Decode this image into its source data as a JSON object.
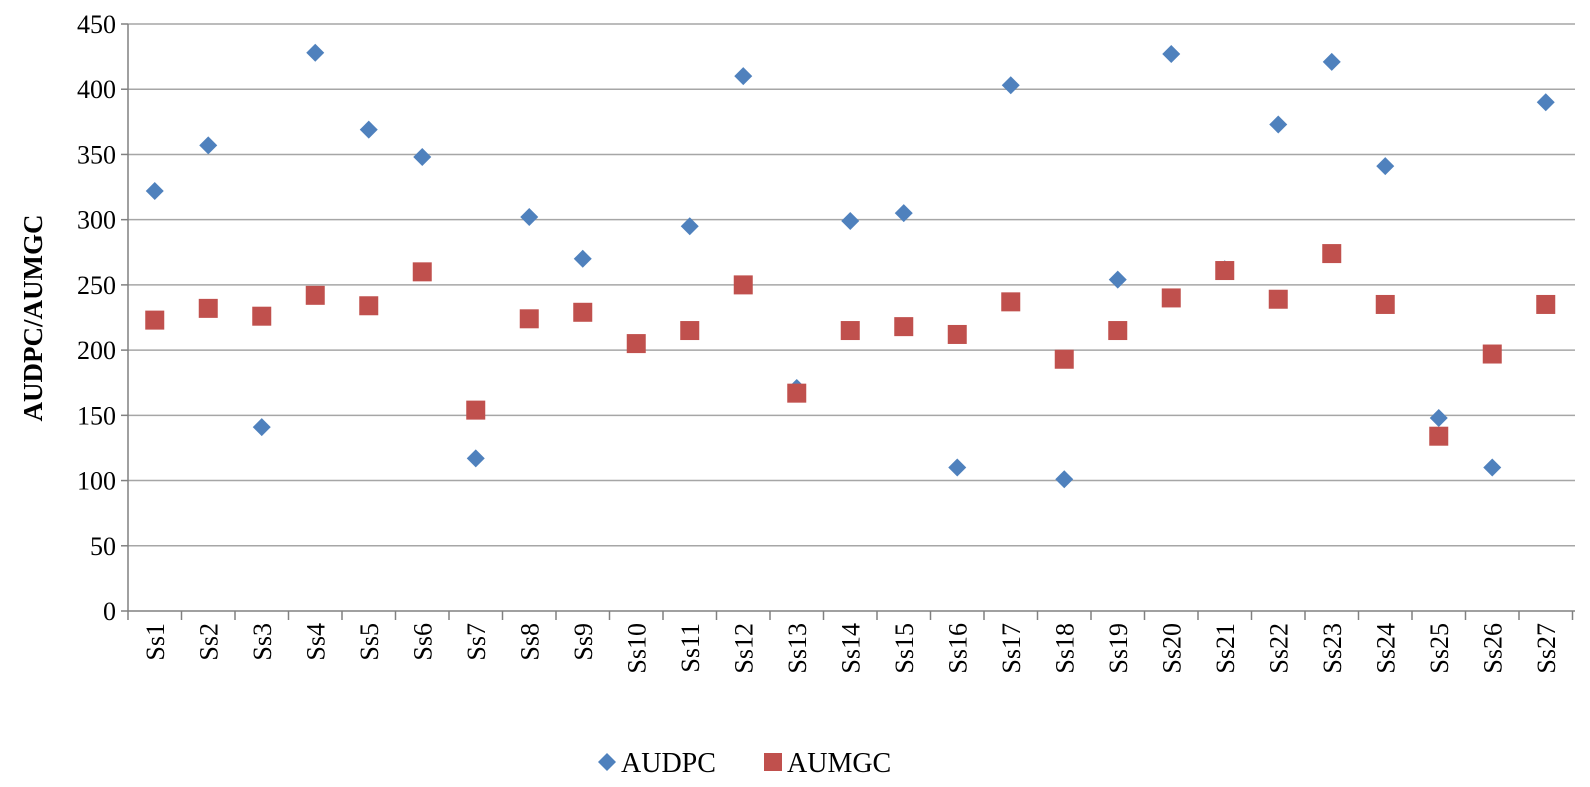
{
  "chart_data": {
    "type": "scatter",
    "categories": [
      "Ss1",
      "Ss2",
      "Ss3",
      "Ss4",
      "Ss5",
      "Ss6",
      "Ss7",
      "Ss8",
      "Ss9",
      "Ss10",
      "Ss11",
      "Ss12",
      "Ss13",
      "Ss14",
      "Ss15",
      "Ss16",
      "Ss17",
      "Ss18",
      "Ss19",
      "Ss20",
      "Ss21",
      "Ss22",
      "Ss23",
      "Ss24",
      "Ss25",
      "Ss26",
      "Ss27"
    ],
    "series": [
      {
        "name": "AUDPC",
        "marker": "diamond",
        "color": "#4F81BD",
        "values": [
          322,
          357,
          141,
          428,
          369,
          348,
          117,
          302,
          270,
          205,
          295,
          410,
          171,
          299,
          305,
          110,
          403,
          101,
          254,
          427,
          262,
          373,
          421,
          341,
          148,
          110,
          390
        ]
      },
      {
        "name": "AUMGC",
        "marker": "square",
        "color": "#C0504D",
        "values": [
          223,
          232,
          226,
          242,
          234,
          260,
          154,
          224,
          229,
          205,
          215,
          250,
          167,
          215,
          218,
          212,
          237,
          193,
          215,
          240,
          261,
          239,
          274,
          235,
          134,
          197,
          235
        ]
      }
    ],
    "title": "",
    "xlabel": "",
    "ylabel": "AUDPC/AUMGC",
    "ylim": [
      0,
      450
    ],
    "yticks": [
      0,
      50,
      100,
      150,
      200,
      250,
      300,
      350,
      400,
      450
    ],
    "grid": "horizontal",
    "legend": "bottom-center"
  }
}
